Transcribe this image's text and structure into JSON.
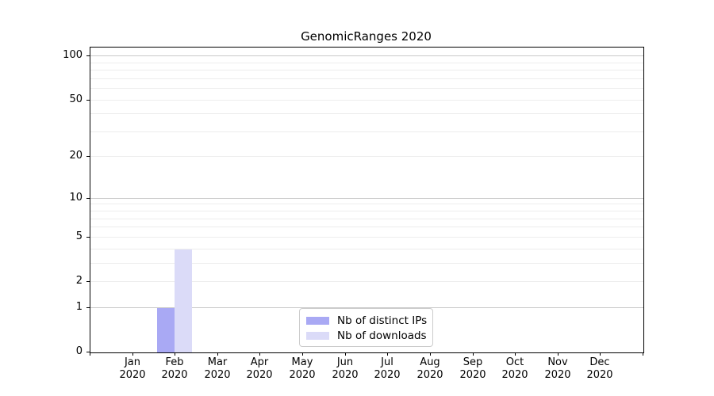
{
  "chart_data": {
    "type": "bar",
    "title": "GenomicRanges 2020",
    "categories": [
      "Jan",
      "Feb",
      "Mar",
      "Apr",
      "May",
      "Jun",
      "Jul",
      "Aug",
      "Sep",
      "Oct",
      "Nov",
      "Dec"
    ],
    "x_tick_year": "2020",
    "series": [
      {
        "name": "Nb of distinct IPs",
        "color": "#a9a9f4",
        "values": [
          0,
          1,
          0,
          0,
          0,
          0,
          0,
          0,
          0,
          0,
          0,
          0
        ]
      },
      {
        "name": "Nb of downloads",
        "color": "#dbdbf8",
        "values": [
          0,
          4,
          0,
          0,
          0,
          0,
          0,
          0,
          0,
          0,
          0,
          0
        ]
      }
    ],
    "y_axis": {
      "scale": "log1p",
      "tick_values": [
        0,
        1,
        2,
        5,
        10,
        20,
        50,
        100
      ],
      "major_gridlines": [
        1,
        10,
        100
      ],
      "minor_gridlines": [
        2,
        3,
        4,
        5,
        6,
        7,
        8,
        9,
        20,
        30,
        40,
        50,
        60,
        70,
        80,
        90
      ],
      "range_top": 115
    },
    "x_axis": {
      "boundary_ticks_unlabeled": 2
    },
    "legend": {
      "position": "lower center"
    },
    "grid": true
  },
  "colors": {
    "background": "#ffffff",
    "axis": "#000000",
    "text": "#000000",
    "major_grid": "#c9c9c9",
    "minor_grid": "#ededed",
    "legend_border": "#cccccc",
    "legend_bg": "#ffffff"
  }
}
